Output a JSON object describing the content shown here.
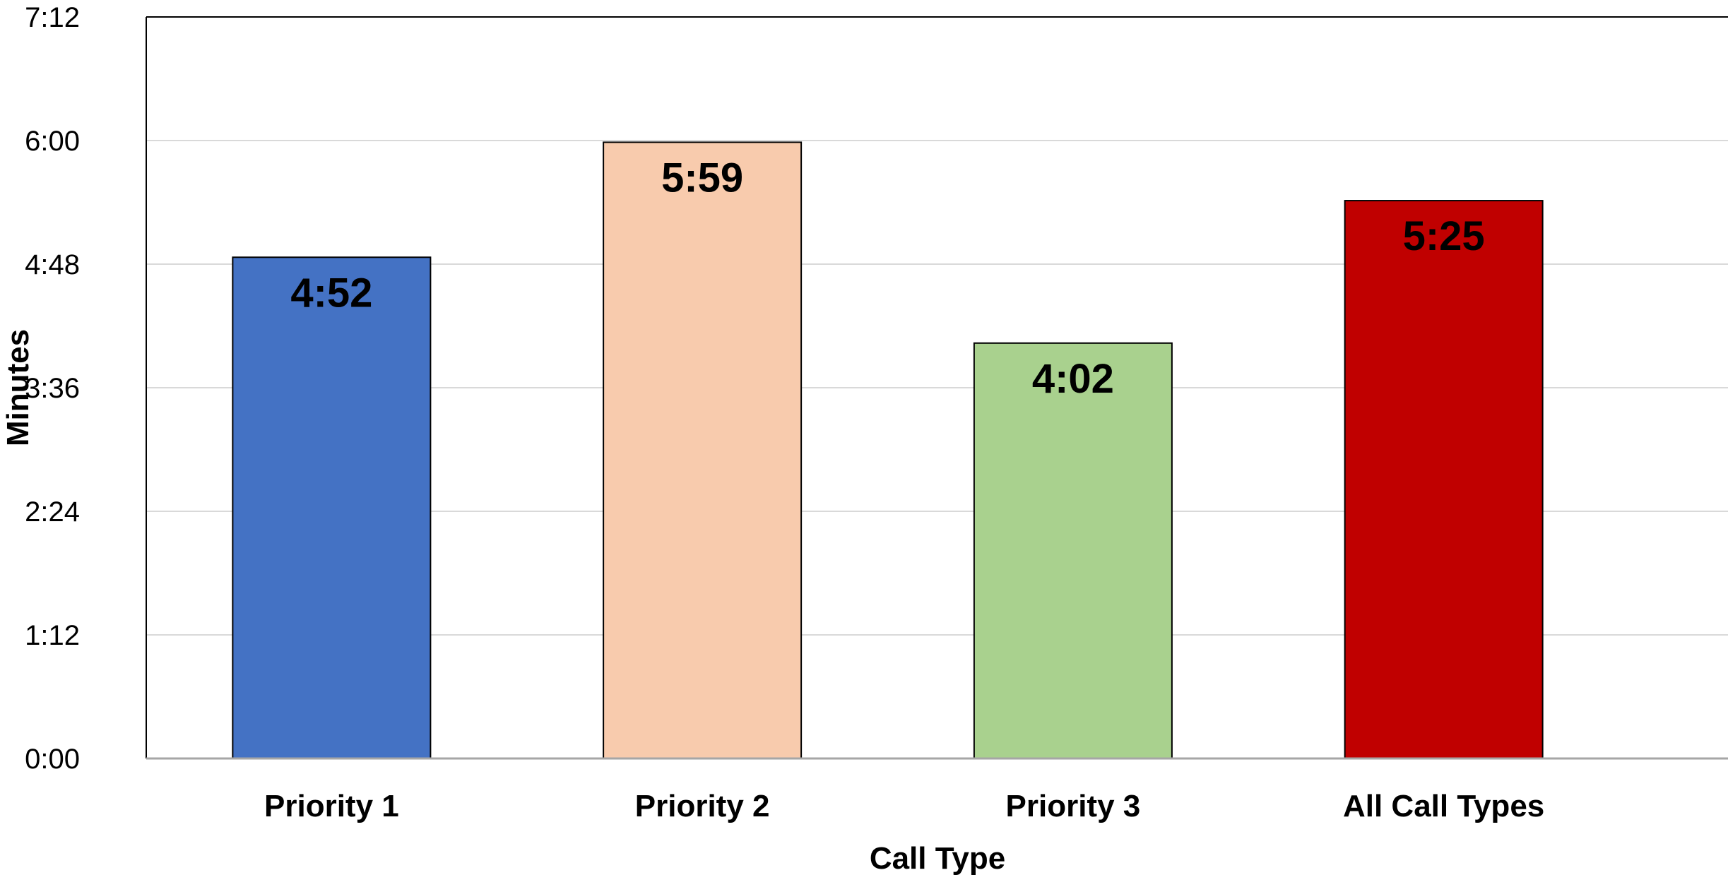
{
  "chart_data": {
    "type": "bar",
    "title": "",
    "xlabel": "Call Type",
    "ylabel": "Minutes",
    "categories": [
      "Priority 1",
      "Priority 2",
      "Priority 3",
      "All Call Types"
    ],
    "values": [
      "4:52",
      "5:59",
      "4:02",
      "5:25"
    ],
    "value_labels": [
      "4:52",
      "5:59",
      "4:02",
      "5:25"
    ],
    "colors": [
      "#4472C4",
      "#F8CBAD",
      "#A9D18E",
      "#C00000"
    ],
    "label_colors": [
      "#000000",
      "#000000",
      "#000000",
      "#000000"
    ],
    "ylim": [
      "0:00",
      "7:12"
    ],
    "yticks": [
      "0:00",
      "1:12",
      "2:24",
      "3:36",
      "4:48",
      "6:00",
      "7:12"
    ],
    "grid": true,
    "legend": "none"
  }
}
